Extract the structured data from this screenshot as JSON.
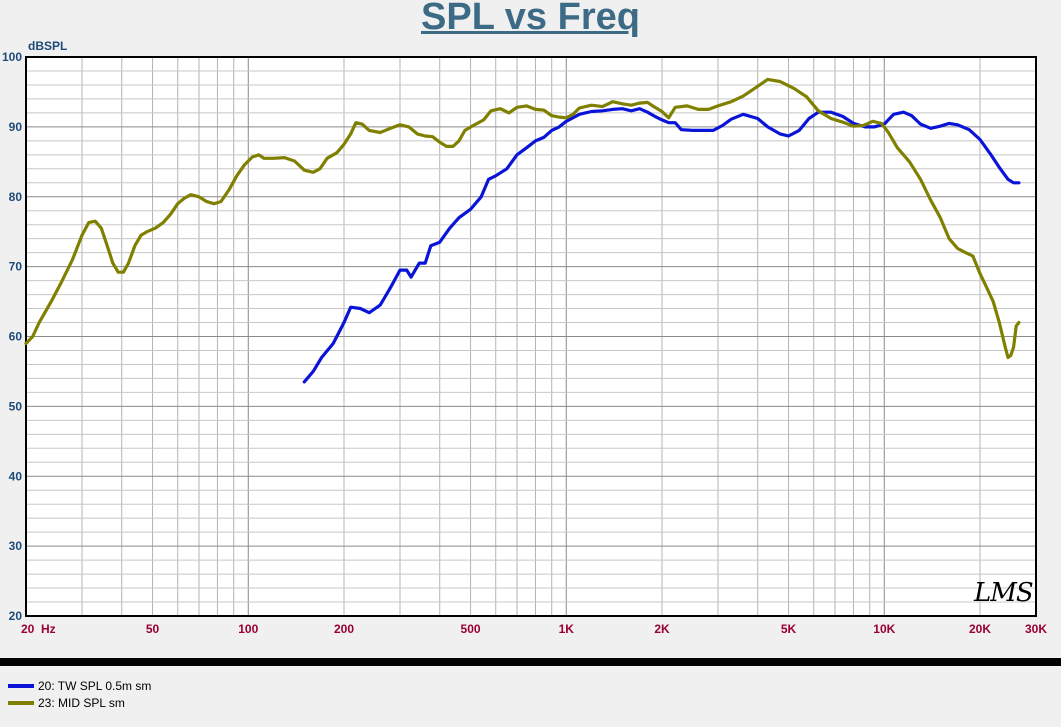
{
  "chart_data": {
    "type": "line",
    "title": "SPL vs Freq",
    "ylabel": "dBSPL",
    "xscale": "log",
    "xlim": [
      20,
      30000
    ],
    "ylim": [
      20,
      100
    ],
    "grid": true,
    "yticks": [
      20,
      30,
      40,
      50,
      60,
      70,
      80,
      90,
      100
    ],
    "xticks": [
      {
        "value": 20,
        "label": "20  Hz"
      },
      {
        "value": 50,
        "label": "50"
      },
      {
        "value": 100,
        "label": "100"
      },
      {
        "value": 200,
        "label": "200"
      },
      {
        "value": 500,
        "label": "500"
      },
      {
        "value": 1000,
        "label": "1K"
      },
      {
        "value": 2000,
        "label": "2K"
      },
      {
        "value": 5000,
        "label": "5K"
      },
      {
        "value": 10000,
        "label": "10K"
      },
      {
        "value": 20000,
        "label": "20K"
      },
      {
        "value": 30000,
        "label": "30K"
      }
    ],
    "legend_position": "bottom-left",
    "series": [
      {
        "name": "20: TW SPL 0.5m sm",
        "color": "#0a14d8",
        "points": [
          [
            150,
            53.5
          ],
          [
            160,
            55
          ],
          [
            170,
            57
          ],
          [
            185,
            59
          ],
          [
            200,
            62
          ],
          [
            210,
            64.2
          ],
          [
            225,
            64
          ],
          [
            240,
            63.4
          ],
          [
            260,
            64.5
          ],
          [
            280,
            67
          ],
          [
            300,
            69.5
          ],
          [
            315,
            69.5
          ],
          [
            325,
            68.5
          ],
          [
            345,
            70.5
          ],
          [
            360,
            70.5
          ],
          [
            375,
            73
          ],
          [
            400,
            73.5
          ],
          [
            430,
            75.5
          ],
          [
            460,
            77
          ],
          [
            500,
            78.2
          ],
          [
            540,
            80
          ],
          [
            570,
            82.5
          ],
          [
            600,
            83
          ],
          [
            650,
            84
          ],
          [
            700,
            86
          ],
          [
            750,
            87
          ],
          [
            800,
            88
          ],
          [
            850,
            88.5
          ],
          [
            900,
            89.5
          ],
          [
            950,
            90
          ],
          [
            1000,
            90.8
          ],
          [
            1100,
            91.8
          ],
          [
            1200,
            92.2
          ],
          [
            1300,
            92.3
          ],
          [
            1400,
            92.5
          ],
          [
            1500,
            92.6
          ],
          [
            1600,
            92.3
          ],
          [
            1700,
            92.6
          ],
          [
            1800,
            92.1
          ],
          [
            1900,
            91.5
          ],
          [
            2000,
            91
          ],
          [
            2100,
            90.6
          ],
          [
            2200,
            90.6
          ],
          [
            2300,
            89.6
          ],
          [
            2500,
            89.5
          ],
          [
            2700,
            89.5
          ],
          [
            2900,
            89.5
          ],
          [
            3100,
            90.2
          ],
          [
            3300,
            91.1
          ],
          [
            3600,
            91.8
          ],
          [
            4000,
            91.2
          ],
          [
            4300,
            90
          ],
          [
            4700,
            89
          ],
          [
            5000,
            88.7
          ],
          [
            5400,
            89.5
          ],
          [
            5800,
            91.2
          ],
          [
            6200,
            92.1
          ],
          [
            6800,
            92.1
          ],
          [
            7400,
            91.5
          ],
          [
            8000,
            90.5
          ],
          [
            8700,
            90
          ],
          [
            9300,
            90
          ],
          [
            10000,
            90.4
          ],
          [
            10700,
            91.8
          ],
          [
            11500,
            92.1
          ],
          [
            12200,
            91.6
          ],
          [
            13000,
            90.4
          ],
          [
            14000,
            89.8
          ],
          [
            15000,
            90.1
          ],
          [
            16000,
            90.5
          ],
          [
            17000,
            90.3
          ],
          [
            18500,
            89.6
          ],
          [
            20000,
            88.2
          ],
          [
            21500,
            86.2
          ],
          [
            23000,
            84.2
          ],
          [
            24500,
            82.5
          ],
          [
            25500,
            82
          ],
          [
            26500,
            82
          ]
        ]
      },
      {
        "name": "23: MID SPL sm",
        "color": "#808000",
        "points": [
          [
            20,
            59
          ],
          [
            21,
            60
          ],
          [
            22,
            62
          ],
          [
            24,
            65
          ],
          [
            26,
            68
          ],
          [
            28,
            71
          ],
          [
            30,
            74.5
          ],
          [
            31.5,
            76.3
          ],
          [
            33,
            76.5
          ],
          [
            34.5,
            75.5
          ],
          [
            36,
            73
          ],
          [
            37.5,
            70.5
          ],
          [
            39,
            69.2
          ],
          [
            40.5,
            69.2
          ],
          [
            42,
            70.5
          ],
          [
            44,
            73
          ],
          [
            46,
            74.5
          ],
          [
            48,
            75
          ],
          [
            51,
            75.5
          ],
          [
            54,
            76.3
          ],
          [
            57,
            77.5
          ],
          [
            60,
            79
          ],
          [
            63,
            79.8
          ],
          [
            66,
            80.3
          ],
          [
            70,
            80
          ],
          [
            74,
            79.3
          ],
          [
            78,
            79
          ],
          [
            82,
            79.3
          ],
          [
            87,
            81
          ],
          [
            92,
            83
          ],
          [
            97,
            84.5
          ],
          [
            103,
            85.7
          ],
          [
            108,
            86
          ],
          [
            112,
            85.5
          ],
          [
            120,
            85.5
          ],
          [
            130,
            85.6
          ],
          [
            140,
            85.1
          ],
          [
            150,
            83.8
          ],
          [
            160,
            83.5
          ],
          [
            168,
            84
          ],
          [
            177,
            85.5
          ],
          [
            190,
            86.3
          ],
          [
            200,
            87.5
          ],
          [
            210,
            89
          ],
          [
            218,
            90.6
          ],
          [
            228,
            90.4
          ],
          [
            240,
            89.5
          ],
          [
            260,
            89.2
          ],
          [
            280,
            89.8
          ],
          [
            300,
            90.3
          ],
          [
            320,
            90
          ],
          [
            340,
            89
          ],
          [
            360,
            88.7
          ],
          [
            380,
            88.6
          ],
          [
            400,
            87.8
          ],
          [
            420,
            87.2
          ],
          [
            440,
            87.2
          ],
          [
            460,
            88
          ],
          [
            480,
            89.5
          ],
          [
            510,
            90.2
          ],
          [
            550,
            91
          ],
          [
            580,
            92.3
          ],
          [
            620,
            92.6
          ],
          [
            660,
            92
          ],
          [
            700,
            92.8
          ],
          [
            750,
            93
          ],
          [
            800,
            92.5
          ],
          [
            850,
            92.4
          ],
          [
            900,
            91.6
          ],
          [
            950,
            91.4
          ],
          [
            1000,
            91.3
          ],
          [
            1050,
            91.8
          ],
          [
            1100,
            92.7
          ],
          [
            1200,
            93.1
          ],
          [
            1300,
            92.9
          ],
          [
            1400,
            93.6
          ],
          [
            1500,
            93.3
          ],
          [
            1600,
            93.1
          ],
          [
            1700,
            93.4
          ],
          [
            1800,
            93.5
          ],
          [
            1900,
            92.8
          ],
          [
            2000,
            92.2
          ],
          [
            2100,
            91.3
          ],
          [
            2200,
            92.8
          ],
          [
            2400,
            93
          ],
          [
            2600,
            92.5
          ],
          [
            2800,
            92.5
          ],
          [
            3000,
            93
          ],
          [
            3300,
            93.6
          ],
          [
            3600,
            94.4
          ],
          [
            4000,
            95.8
          ],
          [
            4300,
            96.8
          ],
          [
            4700,
            96.5
          ],
          [
            5200,
            95.5
          ],
          [
            5700,
            94.3
          ],
          [
            6200,
            92.3
          ],
          [
            6800,
            91.2
          ],
          [
            7500,
            90.6
          ],
          [
            8000,
            90.1
          ],
          [
            8600,
            90.2
          ],
          [
            9200,
            90.8
          ],
          [
            9800,
            90.5
          ],
          [
            10300,
            89.2
          ],
          [
            11000,
            87
          ],
          [
            12000,
            85
          ],
          [
            13000,
            82.5
          ],
          [
            14000,
            79.5
          ],
          [
            15000,
            77
          ],
          [
            16000,
            74
          ],
          [
            17000,
            72.6
          ],
          [
            18000,
            72
          ],
          [
            19000,
            71.5
          ],
          [
            20000,
            69
          ],
          [
            21000,
            67
          ],
          [
            22000,
            65
          ],
          [
            23000,
            62
          ],
          [
            24000,
            58.5
          ],
          [
            24500,
            57
          ],
          [
            25000,
            57.3
          ],
          [
            25500,
            58.5
          ],
          [
            26000,
            61.5
          ],
          [
            26500,
            62
          ]
        ]
      }
    ]
  },
  "watermark": "LMS"
}
